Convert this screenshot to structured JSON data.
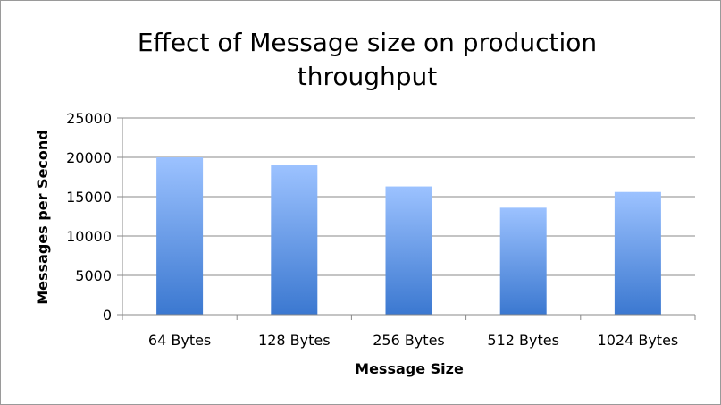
{
  "chart_data": {
    "type": "bar",
    "title": "Effect of Message size on production throughput",
    "xlabel": "Message Size",
    "ylabel": "Messages per Second",
    "categories": [
      "64 Bytes",
      "128 Bytes",
      "256 Bytes",
      "512 Bytes",
      "1024 Bytes"
    ],
    "values": [
      20000,
      19000,
      16300,
      13600,
      15600
    ],
    "ylim": [
      0,
      25000
    ],
    "yticks": [
      "0",
      "5000",
      "10000",
      "15000",
      "20000",
      "25000"
    ],
    "ytick_values": [
      0,
      5000,
      10000,
      15000,
      20000,
      25000
    ],
    "grid": true,
    "legend": "none",
    "colors": {
      "bar_top": "#9cc2ff",
      "bar_bottom": "#3b78d0",
      "grid": "#888888",
      "axis": "#888888"
    }
  }
}
